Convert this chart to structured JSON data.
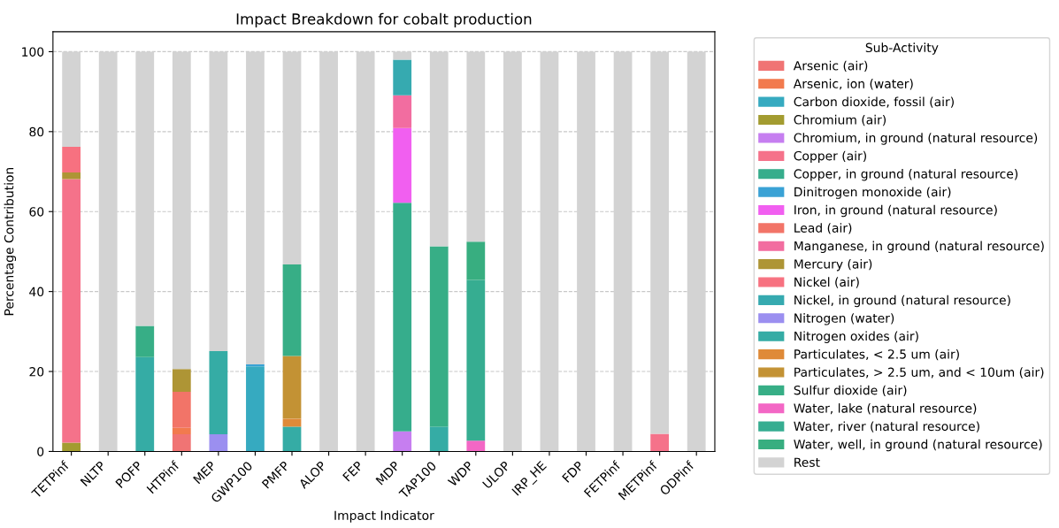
{
  "chart_data": {
    "type": "bar",
    "stacked": true,
    "title": "Impact Breakdown for cobalt production",
    "xlabel": "Impact Indicator",
    "ylabel": "Percentage Contribution",
    "legend_title": "Sub-Activity",
    "legend": "right",
    "grid": "y",
    "ylim": [
      0,
      105
    ],
    "yticks": [
      0,
      20,
      40,
      60,
      80,
      100
    ],
    "categories": [
      "TETPinf",
      "NLTP",
      "POFP",
      "HTPinf",
      "MEP",
      "GWP100",
      "PMFP",
      "ALOP",
      "FEP",
      "MDP",
      "TAP100",
      "WDP",
      "ULOP",
      "IRP_HE",
      "FDP",
      "FETPinf",
      "METPinf",
      "ODPinf"
    ],
    "series": [
      {
        "name": "Arsenic (air)",
        "color": "#f07474",
        "values": [
          0,
          0,
          0,
          4.3,
          0,
          0,
          0,
          0,
          0,
          0,
          0,
          0,
          0,
          0,
          0,
          0,
          0,
          0
        ]
      },
      {
        "name": "Arsenic, ion (water)",
        "color": "#f27a4e",
        "values": [
          0,
          0,
          0,
          1.6,
          0,
          0,
          0,
          0,
          0,
          0,
          0,
          0,
          0,
          0,
          0,
          0,
          0,
          0
        ]
      },
      {
        "name": "Carbon dioxide, fossil (air)",
        "color": "#36aac0",
        "values": [
          0,
          0,
          0,
          0,
          0,
          21.3,
          0,
          0,
          0,
          0,
          0,
          0,
          0,
          0,
          0,
          0,
          0,
          0
        ]
      },
      {
        "name": "Chromium (air)",
        "color": "#a39c30",
        "values": [
          2.2,
          0,
          0,
          0,
          0,
          0,
          0,
          0,
          0,
          0,
          0,
          0,
          0,
          0,
          0,
          0,
          0,
          0
        ]
      },
      {
        "name": "Chromium, in ground (natural resource)",
        "color": "#c67ef0",
        "values": [
          0,
          0,
          0,
          0,
          0,
          0,
          0,
          0,
          0,
          5.0,
          0,
          0,
          0,
          0,
          0,
          0,
          0,
          0
        ]
      },
      {
        "name": "Copper (air)",
        "color": "#f5728a",
        "values": [
          65.9,
          0,
          0,
          0,
          0,
          0,
          0,
          0,
          0,
          0,
          0,
          0,
          0,
          0,
          0,
          0,
          4.4,
          0
        ]
      },
      {
        "name": "Copper, in ground (natural resource)",
        "color": "#36ad8c",
        "values": [
          0,
          0,
          0,
          0,
          0,
          0,
          0,
          0,
          0,
          57.2,
          0,
          0,
          0,
          0,
          0,
          0,
          0,
          0
        ]
      },
      {
        "name": "Dinitrogen monoxide (air)",
        "color": "#3aa2d5",
        "values": [
          0,
          0,
          0,
          0,
          0,
          0.5,
          0,
          0,
          0,
          0,
          0,
          0,
          0,
          0,
          0,
          0,
          0,
          0
        ]
      },
      {
        "name": "Iron, in ground (natural resource)",
        "color": "#f15ff0",
        "values": [
          0,
          0,
          0,
          0,
          0,
          0,
          0,
          0,
          0,
          18.7,
          0,
          0,
          0,
          0,
          0,
          0,
          0,
          0
        ]
      },
      {
        "name": "Lead (air)",
        "color": "#f27468",
        "values": [
          0,
          0,
          0,
          9.0,
          0,
          0,
          0,
          0,
          0,
          0,
          0,
          0,
          0,
          0,
          0,
          0,
          0,
          0
        ]
      },
      {
        "name": "Manganese, in ground (natural resource)",
        "color": "#f26da0",
        "values": [
          0,
          0,
          0,
          0,
          0,
          0,
          0,
          0,
          0,
          8.2,
          0,
          0,
          0,
          0,
          0,
          0,
          0,
          0
        ]
      },
      {
        "name": "Mercury (air)",
        "color": "#ae9535",
        "values": [
          1.7,
          0,
          0,
          5.7,
          0,
          0,
          0,
          0,
          0,
          0,
          0,
          0,
          0,
          0,
          0,
          0,
          0,
          0
        ]
      },
      {
        "name": "Nickel (air)",
        "color": "#f77180",
        "values": [
          6.4,
          0,
          0,
          0,
          0,
          0,
          0,
          0,
          0,
          0,
          0,
          0,
          0,
          0,
          0,
          0,
          0,
          0
        ]
      },
      {
        "name": "Nickel, in ground (natural resource)",
        "color": "#36aab0",
        "values": [
          0,
          0,
          0,
          0,
          0,
          0,
          0,
          0,
          0,
          8.9,
          0,
          0,
          0,
          0,
          0,
          0,
          0,
          0
        ]
      },
      {
        "name": "Nitrogen (water)",
        "color": "#9b8ff0",
        "values": [
          0,
          0,
          0,
          0,
          4.3,
          0,
          0,
          0,
          0,
          0,
          0,
          0,
          0,
          0,
          0,
          0,
          0,
          0
        ]
      },
      {
        "name": "Nitrogen oxides (air)",
        "color": "#35aca5",
        "values": [
          0,
          0,
          23.6,
          0,
          20.8,
          0,
          6.2,
          0,
          0,
          0,
          6.2,
          0,
          0,
          0,
          0,
          0,
          0,
          0
        ]
      },
      {
        "name": "Particulates, < 2.5 um (air)",
        "color": "#df8a38",
        "values": [
          0,
          0,
          0,
          0,
          0,
          0,
          2.0,
          0,
          0,
          0,
          0,
          0,
          0,
          0,
          0,
          0,
          0,
          0
        ]
      },
      {
        "name": "Particulates, > 2.5 um, and < 10um (air)",
        "color": "#c39234",
        "values": [
          0,
          0,
          0,
          0,
          0,
          0,
          15.7,
          0,
          0,
          0,
          0,
          0,
          0,
          0,
          0,
          0,
          0,
          0
        ]
      },
      {
        "name": "Sulfur dioxide (air)",
        "color": "#37ae86",
        "values": [
          0,
          0,
          7.8,
          0,
          0,
          0,
          22.9,
          0,
          0,
          0,
          45.1,
          0,
          0,
          0,
          0,
          0,
          0,
          0
        ]
      },
      {
        "name": "Water, lake (natural resource)",
        "color": "#f367c5",
        "values": [
          0,
          0,
          0,
          0,
          0,
          0,
          0,
          0,
          0,
          0,
          0,
          2.7,
          0,
          0,
          0,
          0,
          0,
          0
        ]
      },
      {
        "name": "Water, river (natural resource)",
        "color": "#36ad91",
        "values": [
          0,
          0,
          0,
          0,
          0,
          0,
          0,
          0,
          0,
          0,
          0,
          40.2,
          0,
          0,
          0,
          0,
          0,
          0
        ]
      },
      {
        "name": "Water, well, in ground (natural resource)",
        "color": "#38ae80",
        "values": [
          0,
          0,
          0,
          0,
          0,
          0,
          0,
          0,
          0,
          0,
          0,
          9.6,
          0,
          0,
          0,
          0,
          0,
          0
        ]
      },
      {
        "name": "Rest",
        "color": "#d3d3d3",
        "values": [
          23.8,
          100,
          68.6,
          79.4,
          74.9,
          78.2,
          53.2,
          100,
          100,
          2.0,
          48.7,
          47.5,
          100,
          100,
          100,
          100,
          95.6,
          100
        ]
      }
    ]
  }
}
